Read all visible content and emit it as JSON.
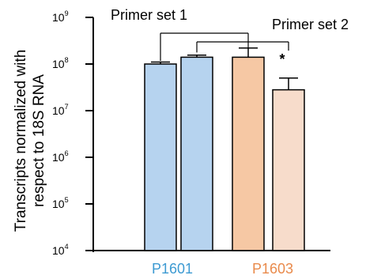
{
  "chart_data": {
    "type": "bar",
    "y_scale": "log",
    "ylim": [
      10000,
      1000000000
    ],
    "ylabel_lines": [
      "Transcripts normalized with",
      "respect to 18S RNA"
    ],
    "y_ticks": [
      {
        "base": "10",
        "exp": "4"
      },
      {
        "base": "10",
        "exp": "5"
      },
      {
        "base": "10",
        "exp": "6"
      },
      {
        "base": "10",
        "exp": "7"
      },
      {
        "base": "10",
        "exp": "8"
      },
      {
        "base": "10",
        "exp": "9"
      }
    ],
    "groups": [
      {
        "label": "P1601",
        "color": "#3c9ad2"
      },
      {
        "label": "P1603",
        "color": "#e98a4b"
      }
    ],
    "bars": [
      {
        "group": 0,
        "value": 100000000,
        "error": 10000000,
        "fill": "#b6d3ef"
      },
      {
        "group": 0,
        "value": 140000000,
        "error": 15000000,
        "fill": "#b6d3ef"
      },
      {
        "group": 1,
        "value": 140000000,
        "error": 80000000,
        "fill": "#f6c8a4"
      },
      {
        "group": 1,
        "value": 28000000,
        "error": 22000000,
        "fill": "#f7dccb"
      }
    ],
    "annotations": {
      "primer_set_1": "Primer  set 1",
      "primer_set_2": "Primer set 2",
      "significance": "*"
    }
  }
}
